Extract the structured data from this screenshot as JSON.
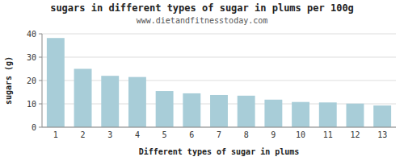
{
  "chart_data": {
    "type": "bar",
    "title": "sugars in different types of sugar in plums per 100g",
    "subtitle": "www.dietandfitnesstoday.com",
    "xlabel": "Different types of sugar in plums",
    "ylabel": "sugars (g)",
    "categories": [
      1,
      2,
      3,
      4,
      5,
      6,
      7,
      8,
      9,
      10,
      11,
      12,
      13
    ],
    "values": [
      38.2,
      25.0,
      22.0,
      21.5,
      15.5,
      14.5,
      13.8,
      13.5,
      11.8,
      10.8,
      10.6,
      10.1,
      9.3
    ],
    "color": "#a8cdd8",
    "ylim": [
      0,
      40
    ],
    "yticks": [
      0,
      10,
      20,
      30,
      40
    ],
    "grid": true
  }
}
